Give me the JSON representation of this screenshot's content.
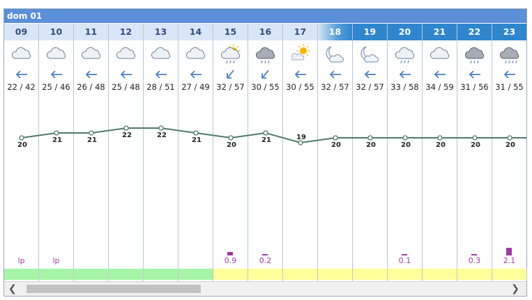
{
  "day_label": "dom 01",
  "hours": [
    {
      "h": "09",
      "night": false,
      "sky": "partly-cloudy",
      "wind": "arrow-west",
      "tmin": "22",
      "tmax": "42",
      "temp": 20,
      "rain": "lp",
      "bar": 0
    },
    {
      "h": "10",
      "night": false,
      "sky": "partly-cloudy",
      "wind": "arrow-west",
      "tmin": "25",
      "tmax": "46",
      "temp": 21,
      "rain": "lp",
      "bar": 0
    },
    {
      "h": "11",
      "night": false,
      "sky": "partly-cloudy",
      "wind": "arrow-west",
      "tmin": "26",
      "tmax": "48",
      "temp": 21,
      "rain": "",
      "bar": 0
    },
    {
      "h": "12",
      "night": false,
      "sky": "partly-cloudy",
      "wind": "arrow-west",
      "tmin": "25",
      "tmax": "48",
      "temp": 22,
      "rain": "",
      "bar": 0
    },
    {
      "h": "13",
      "night": false,
      "sky": "partly-cloudy",
      "wind": "arrow-west",
      "tmin": "28",
      "tmax": "51",
      "temp": 22,
      "rain": "",
      "bar": 0
    },
    {
      "h": "14",
      "night": false,
      "sky": "partly-cloudy",
      "wind": "arrow-west",
      "tmin": "27",
      "tmax": "49",
      "temp": 21,
      "rain": "",
      "bar": 0
    },
    {
      "h": "15",
      "night": false,
      "sky": "sun-cloud-rain",
      "wind": "arrow-southwest",
      "tmin": "32",
      "tmax": "57",
      "temp": 20,
      "rain": "0.9",
      "bar": 0.9
    },
    {
      "h": "16",
      "night": false,
      "sky": "cloudy-rain",
      "wind": "arrow-southwest",
      "tmin": "30",
      "tmax": "55",
      "temp": 21,
      "rain": "0.2",
      "bar": 0.2
    },
    {
      "h": "17",
      "night": false,
      "sky": "sun-cloud",
      "wind": "arrow-west",
      "tmin": "30",
      "tmax": "55",
      "temp": 19,
      "rain": "",
      "bar": 0
    },
    {
      "h": "18",
      "night": "trans",
      "sky": "moon-cloud",
      "wind": "arrow-west",
      "tmin": "32",
      "tmax": "57",
      "temp": 20,
      "rain": "",
      "bar": 0
    },
    {
      "h": "19",
      "night": true,
      "sky": "moon-cloud",
      "wind": "arrow-west",
      "tmin": "32",
      "tmax": "57",
      "temp": 20,
      "rain": "",
      "bar": 0
    },
    {
      "h": "20",
      "night": true,
      "sky": "partly-cloudy-rain",
      "wind": "arrow-west",
      "tmin": "33",
      "tmax": "58",
      "temp": 20,
      "rain": "0.1",
      "bar": 0.1
    },
    {
      "h": "21",
      "night": true,
      "sky": "partly-cloudy",
      "wind": "arrow-west",
      "tmin": "34",
      "tmax": "59",
      "temp": 20,
      "rain": "",
      "bar": 0
    },
    {
      "h": "22",
      "night": true,
      "sky": "cloudy-rain",
      "wind": "arrow-west",
      "tmin": "31",
      "tmax": "56",
      "temp": 20,
      "rain": "0.3",
      "bar": 0.3
    },
    {
      "h": "23",
      "night": true,
      "sky": "cloudy-rain-heavy",
      "wind": "arrow-west",
      "tmin": "31",
      "tmax": "55",
      "temp": 20,
      "rain": "2.1",
      "bar": 2.1
    }
  ],
  "strip_colors": [
    "#a6f5a6",
    "#a6f5a6",
    "#a6f5a6",
    "#a6f5a6",
    "#a6f5a6",
    "#a6f5a6",
    "#ffff99",
    "#ffff99",
    "#ffff99",
    "#ffff99",
    "#ffff99",
    "#ffff99",
    "#ffff99",
    "#ffff99",
    "#ffff99"
  ],
  "colors": {
    "line": "#4e7a66",
    "rain": "#9b3d9e",
    "header": "#5b8fd8",
    "night": "#2f86cd"
  },
  "scrollbar": {
    "left_icon": "chevron-left-icon",
    "right_icon": "chevron-right-icon"
  }
}
